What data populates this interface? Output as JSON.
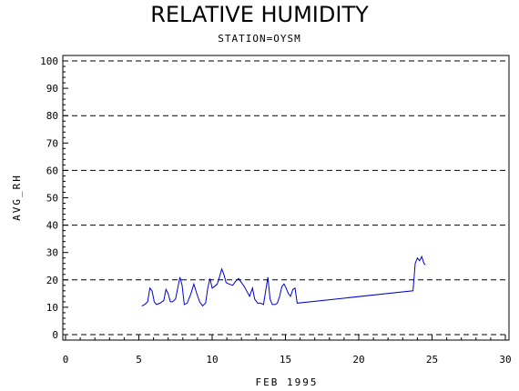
{
  "chart_data": {
    "type": "line",
    "title": "RELATIVE HUMIDITY",
    "subtitle": "STATION=OYSM",
    "xlabel": "FEB 1995",
    "ylabel": "AVG_RH",
    "xlim": [
      0,
      30
    ],
    "ylim": [
      0,
      100
    ],
    "xticks": [
      0,
      5,
      10,
      15,
      20,
      25,
      30
    ],
    "yticks": [
      0,
      10,
      20,
      30,
      40,
      50,
      60,
      70,
      80,
      90,
      100
    ],
    "grid_y_dashed": [
      0,
      20,
      40,
      60,
      80,
      100
    ],
    "series": [
      {
        "color": "#0000cc",
        "points": [
          [
            5.2,
            10.5
          ],
          [
            5.4,
            11
          ],
          [
            5.6,
            12
          ],
          [
            5.75,
            17
          ],
          [
            5.9,
            16
          ],
          [
            6.05,
            12
          ],
          [
            6.2,
            11
          ],
          [
            6.45,
            11.5
          ],
          [
            6.7,
            12.5
          ],
          [
            6.85,
            16.5
          ],
          [
            7.0,
            15
          ],
          [
            7.15,
            12
          ],
          [
            7.3,
            12
          ],
          [
            7.5,
            13
          ],
          [
            7.65,
            17
          ],
          [
            7.8,
            21
          ],
          [
            7.95,
            18
          ],
          [
            8.1,
            11
          ],
          [
            8.3,
            11.5
          ],
          [
            8.55,
            15
          ],
          [
            8.75,
            18.5
          ],
          [
            8.95,
            15
          ],
          [
            9.15,
            12
          ],
          [
            9.35,
            10.5
          ],
          [
            9.55,
            11.5
          ],
          [
            9.7,
            17
          ],
          [
            9.85,
            20.5
          ],
          [
            10.0,
            17
          ],
          [
            10.15,
            17.5
          ],
          [
            10.35,
            18.5
          ],
          [
            10.5,
            21
          ],
          [
            10.65,
            24
          ],
          [
            10.8,
            22
          ],
          [
            10.95,
            19
          ],
          [
            11.15,
            18.5
          ],
          [
            11.4,
            18
          ],
          [
            11.6,
            19.5
          ],
          [
            11.8,
            20.5
          ],
          [
            12.0,
            19
          ],
          [
            12.2,
            17.5
          ],
          [
            12.35,
            16
          ],
          [
            12.55,
            14
          ],
          [
            12.75,
            17
          ],
          [
            12.9,
            13
          ],
          [
            13.1,
            11.5
          ],
          [
            13.3,
            11.5
          ],
          [
            13.5,
            11
          ],
          [
            13.65,
            16
          ],
          [
            13.8,
            21
          ],
          [
            13.95,
            13
          ],
          [
            14.1,
            11
          ],
          [
            14.3,
            11
          ],
          [
            14.45,
            11.5
          ],
          [
            14.6,
            14
          ],
          [
            14.75,
            17.5
          ],
          [
            14.9,
            18.5
          ],
          [
            15.05,
            17
          ],
          [
            15.2,
            15
          ],
          [
            15.35,
            14
          ],
          [
            15.5,
            16.5
          ],
          [
            15.65,
            17
          ],
          [
            15.8,
            11.5
          ],
          [
            23.7,
            16
          ],
          [
            23.85,
            26
          ],
          [
            24.0,
            28
          ],
          [
            24.15,
            27
          ],
          [
            24.3,
            28.5
          ],
          [
            24.45,
            26
          ],
          [
            24.55,
            25.5
          ]
        ]
      }
    ]
  }
}
